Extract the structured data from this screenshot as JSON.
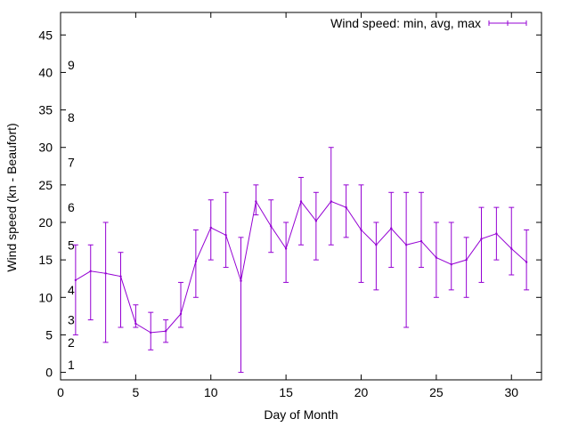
{
  "chart_data": {
    "type": "line",
    "xlabel": "Day of Month",
    "ylabel": "Wind speed (kn - Beaufort)",
    "xlim": [
      0,
      32
    ],
    "ylim": [
      -1,
      48
    ],
    "x_ticks": [
      "0",
      "5",
      "10",
      "15",
      "20",
      "25",
      "30"
    ],
    "y_ticks": [
      "0",
      "5",
      "10",
      "15",
      "20",
      "25",
      "30",
      "35",
      "40",
      "45"
    ],
    "grid": false,
    "legend_position": "top-right",
    "beaufort_scale": [
      {
        "label": "1",
        "y": 1
      },
      {
        "label": "2",
        "y": 4
      },
      {
        "label": "3",
        "y": 7
      },
      {
        "label": "4",
        "y": 11
      },
      {
        "label": "5",
        "y": 17
      },
      {
        "label": "6",
        "y": 22
      },
      {
        "label": "7",
        "y": 28
      },
      {
        "label": "8",
        "y": 34
      },
      {
        "label": "9",
        "y": 41
      }
    ],
    "series": [
      {
        "name": "Wind speed: min, avg, max",
        "color": "#9400d3",
        "x": [
          1,
          2,
          3,
          4,
          5,
          6,
          7,
          8,
          9,
          10,
          11,
          12,
          13,
          14,
          15,
          16,
          17,
          18,
          19,
          20,
          21,
          22,
          23,
          24,
          25,
          26,
          27,
          28,
          29,
          30,
          31
        ],
        "avg": [
          12.3,
          13.5,
          13.2,
          12.8,
          6.5,
          5.3,
          5.5,
          7.8,
          14.8,
          19.3,
          18.3,
          12.2,
          22.8,
          19.5,
          16.5,
          22.8,
          20.2,
          22.8,
          22.0,
          19.0,
          17.0,
          19.2,
          17.0,
          17.5,
          15.3,
          14.4,
          15.0,
          17.8,
          18.5,
          16.5,
          14.7
        ],
        "min": [
          5,
          7,
          4,
          6,
          6,
          3,
          4,
          6,
          10,
          15,
          14,
          0,
          21,
          16,
          12,
          17,
          15,
          17,
          18,
          12,
          11,
          14,
          6,
          14,
          10,
          11,
          10,
          12,
          15,
          13,
          11
        ],
        "max": [
          17,
          17,
          20,
          16,
          9,
          8,
          7,
          12,
          19,
          23,
          24,
          18,
          25,
          23,
          20,
          26,
          24,
          30,
          25,
          25,
          20,
          24,
          24,
          24,
          20,
          20,
          18,
          22,
          22,
          22,
          19
        ]
      }
    ]
  }
}
